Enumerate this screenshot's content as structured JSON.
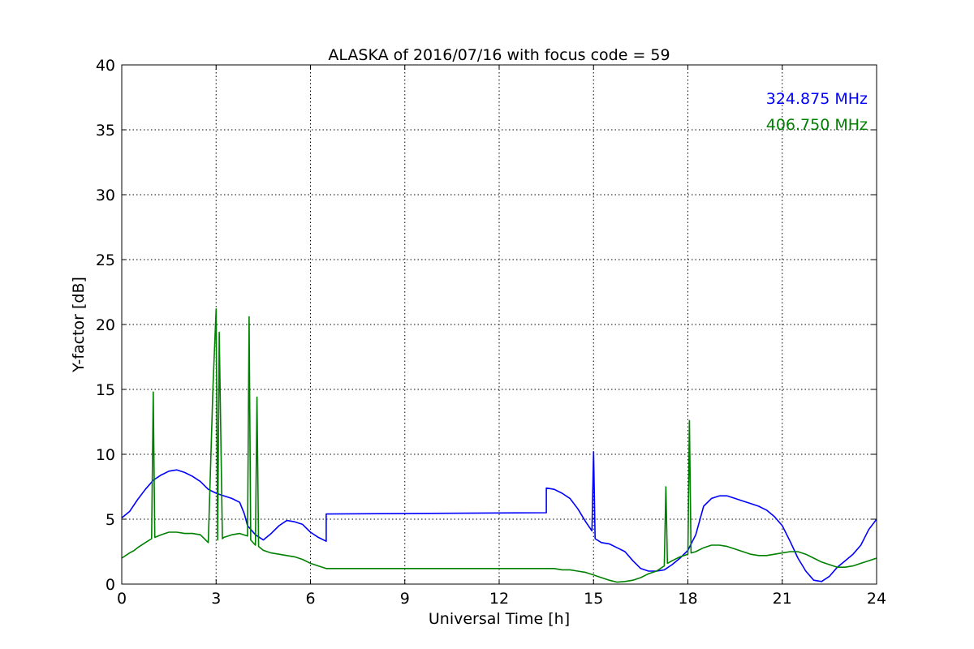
{
  "chart_data": {
    "type": "line",
    "title": "ALASKA of 2016/07/16 with focus code = 59",
    "xlabel": "Universal Time [h]",
    "ylabel": "Y-factor [dB]",
    "xlim": [
      0,
      24
    ],
    "ylim": [
      0,
      40
    ],
    "x_ticks": [
      0,
      3,
      6,
      9,
      12,
      15,
      18,
      21,
      24
    ],
    "x_tick_labels": [
      "0",
      "3",
      "6",
      "9",
      "12",
      "15",
      "18",
      "21",
      "24"
    ],
    "y_ticks": [
      0,
      5,
      10,
      15,
      20,
      25,
      30,
      35,
      40
    ],
    "y_tick_labels": [
      "0",
      "5",
      "10",
      "15",
      "20",
      "25",
      "30",
      "35",
      "40"
    ],
    "grid": true,
    "legend_position": "top-right",
    "series": [
      {
        "name": "324.875 MHz",
        "color": "#0000ff",
        "x": [
          0,
          0.25,
          0.5,
          0.75,
          1.0,
          1.25,
          1.5,
          1.75,
          2.0,
          2.25,
          2.5,
          2.75,
          3.0,
          3.25,
          3.5,
          3.75,
          3.9,
          4.0,
          4.25,
          4.5,
          4.75,
          5.0,
          5.25,
          5.5,
          5.75,
          6.0,
          6.25,
          6.5,
          6.5,
          13.5,
          13.5,
          13.75,
          14.0,
          14.25,
          14.5,
          14.75,
          14.95,
          15.0,
          15.05,
          15.25,
          15.5,
          15.75,
          16.0,
          16.25,
          16.5,
          16.75,
          17.0,
          17.25,
          17.5,
          17.75,
          18.0,
          18.25,
          18.5,
          18.75,
          19.0,
          19.25,
          19.5,
          19.75,
          20.0,
          20.25,
          20.5,
          20.75,
          21.0,
          21.25,
          21.5,
          21.75,
          22.0,
          22.25,
          22.5,
          22.75,
          23.0,
          23.25,
          23.5,
          23.75,
          24.0
        ],
        "values": [
          5.1,
          5.6,
          6.5,
          7.3,
          8.0,
          8.4,
          8.7,
          8.8,
          8.6,
          8.3,
          7.9,
          7.3,
          7.0,
          6.8,
          6.6,
          6.3,
          5.4,
          4.5,
          3.8,
          3.4,
          3.9,
          4.5,
          4.9,
          4.8,
          4.6,
          4.0,
          3.6,
          3.3,
          5.4,
          5.5,
          7.4,
          7.3,
          7.0,
          6.6,
          5.8,
          4.8,
          4.1,
          10.2,
          3.5,
          3.2,
          3.1,
          2.8,
          2.5,
          1.8,
          1.2,
          1.0,
          1.0,
          1.1,
          1.5,
          2.0,
          2.6,
          3.8,
          6.0,
          6.6,
          6.8,
          6.8,
          6.6,
          6.4,
          6.2,
          6.0,
          5.7,
          5.2,
          4.5,
          3.3,
          2.0,
          1.0,
          0.3,
          0.2,
          0.6,
          1.3,
          1.8,
          2.3,
          3.0,
          4.2,
          5.0
        ]
      },
      {
        "name": "406.750 MHz",
        "color": "#008000",
        "x": [
          0,
          0.25,
          0.4,
          0.5,
          0.75,
          0.95,
          1.0,
          1.05,
          1.25,
          1.5,
          1.75,
          2.0,
          2.25,
          2.5,
          2.75,
          2.9,
          3.0,
          3.05,
          3.1,
          3.2,
          3.25,
          3.5,
          3.75,
          4.0,
          4.05,
          4.1,
          4.25,
          4.3,
          4.35,
          4.5,
          4.75,
          5.0,
          5.25,
          5.5,
          5.75,
          6.0,
          6.25,
          6.5,
          6.5,
          13.5,
          13.75,
          14.0,
          14.25,
          14.5,
          14.75,
          15.0,
          15.25,
          15.5,
          15.75,
          16.0,
          16.25,
          16.5,
          16.75,
          17.0,
          17.25,
          17.3,
          17.35,
          17.5,
          17.75,
          18.0,
          18.05,
          18.1,
          18.25,
          18.5,
          18.75,
          19.0,
          19.25,
          19.5,
          19.75,
          20.0,
          20.25,
          20.5,
          20.75,
          21.0,
          21.25,
          21.5,
          21.75,
          22.0,
          22.25,
          22.5,
          22.75,
          23.0,
          23.25,
          23.5,
          23.75,
          24.0
        ],
        "values": [
          2.0,
          2.4,
          2.6,
          2.8,
          3.2,
          3.5,
          14.8,
          3.6,
          3.8,
          4.0,
          4.0,
          3.9,
          3.9,
          3.8,
          3.2,
          15.2,
          21.2,
          3.4,
          19.4,
          3.5,
          3.6,
          3.8,
          3.9,
          3.7,
          20.6,
          3.4,
          3.0,
          14.4,
          2.9,
          2.6,
          2.4,
          2.3,
          2.2,
          2.1,
          1.9,
          1.6,
          1.4,
          1.2,
          1.2,
          1.2,
          1.2,
          1.1,
          1.1,
          1.0,
          0.9,
          0.7,
          0.5,
          0.3,
          0.15,
          0.2,
          0.3,
          0.5,
          0.8,
          1.0,
          1.4,
          7.5,
          1.6,
          1.8,
          2.1,
          2.3,
          12.6,
          2.4,
          2.5,
          2.8,
          3.0,
          3.0,
          2.9,
          2.7,
          2.5,
          2.3,
          2.2,
          2.2,
          2.3,
          2.4,
          2.5,
          2.5,
          2.3,
          2.0,
          1.7,
          1.5,
          1.3,
          1.3,
          1.4,
          1.6,
          1.8,
          2.0
        ]
      }
    ]
  }
}
